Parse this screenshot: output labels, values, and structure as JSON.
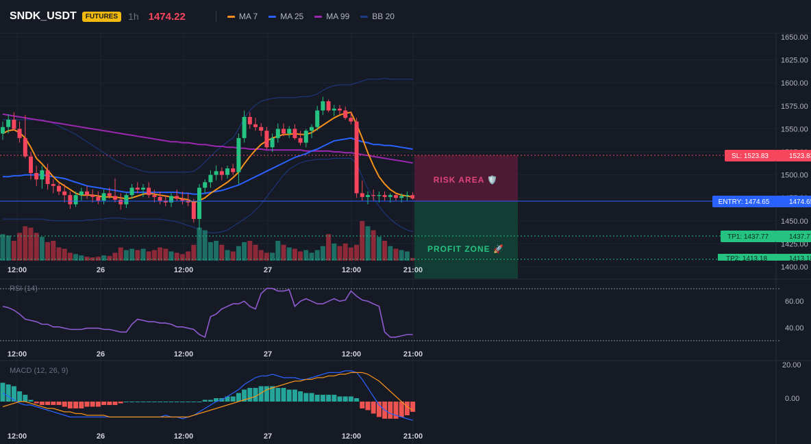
{
  "header": {
    "symbol": "SNDK_USDT",
    "badge": "FUTURES",
    "timeframe": "1h",
    "last_price": "1474.22",
    "legend": [
      {
        "name": "MA 7",
        "color": "#f7931a"
      },
      {
        "name": "MA 25",
        "color": "#2962ff"
      },
      {
        "name": "MA 99",
        "color": "#9c27b0"
      },
      {
        "name": "BB 20",
        "color": "#1e3a8a"
      }
    ]
  },
  "colors": {
    "up": "#26c281",
    "down": "#f6465d",
    "vol_up": "#1d6e64",
    "vol_down": "#8c2a39"
  },
  "price_axis": {
    "ticks": [
      "1650.00",
      "1625.00",
      "1600.00",
      "1575.00",
      "1550.00",
      "1525.00",
      "1500.00",
      "1475.00",
      "1450.00",
      "1425.00",
      "1400.00"
    ]
  },
  "time_axis": [
    "12:00",
    "26",
    "12:00",
    "27",
    "12:00",
    "21:00"
  ],
  "trade": {
    "sl_label": "SL: 1523.83",
    "sl_value": "1523.83",
    "entry_label": "ENTRY: 1474.65",
    "entry_value": "1474.65",
    "tp1_label": "TP1: 1437.77",
    "tp1_value": "1437.77",
    "tp2_label": "TP2: 1413.18",
    "tp2_value": "1413.18",
    "risk_label": "RISK AREA 🛡️",
    "profit_label": "PROFIT ZONE 🚀"
  },
  "rsi": {
    "label": "RSI (14)",
    "ticks": [
      "60.00",
      "40.00"
    ]
  },
  "macd": {
    "label": "MACD (12, 26, 9)",
    "ticks": [
      "20.00",
      "0.00"
    ]
  },
  "chart_data": [
    {
      "type": "candlestick",
      "title": "SNDK_USDT 1h",
      "ylim": [
        1400,
        1655
      ],
      "x_labels": [
        "12:00",
        "26",
        "12:00",
        "27",
        "12:00",
        "21:00"
      ],
      "candles": [
        [
          1545,
          1558,
          1538,
          1552
        ],
        [
          1552,
          1566,
          1545,
          1560
        ],
        [
          1560,
          1568,
          1548,
          1550
        ],
        [
          1550,
          1558,
          1535,
          1540
        ],
        [
          1540,
          1565,
          1518,
          1520
        ],
        [
          1520,
          1525,
          1495,
          1502
        ],
        [
          1502,
          1510,
          1488,
          1495
        ],
        [
          1495,
          1510,
          1485,
          1505
        ],
        [
          1505,
          1512,
          1484,
          1490
        ],
        [
          1490,
          1495,
          1480,
          1488
        ],
        [
          1488,
          1492,
          1478,
          1482
        ],
        [
          1482,
          1490,
          1470,
          1478
        ],
        [
          1478,
          1482,
          1463,
          1468
        ],
        [
          1468,
          1482,
          1465,
          1478
        ],
        [
          1478,
          1486,
          1472,
          1482
        ],
        [
          1482,
          1488,
          1474,
          1478
        ],
        [
          1478,
          1484,
          1470,
          1476
        ],
        [
          1476,
          1482,
          1468,
          1472
        ],
        [
          1472,
          1484,
          1468,
          1480
        ],
        [
          1480,
          1486,
          1474,
          1477
        ],
        [
          1477,
          1496,
          1470,
          1473
        ],
        [
          1473,
          1480,
          1462,
          1468
        ],
        [
          1468,
          1480,
          1464,
          1478
        ],
        [
          1478,
          1490,
          1474,
          1486
        ],
        [
          1486,
          1492,
          1480,
          1484
        ],
        [
          1484,
          1490,
          1476,
          1486
        ],
        [
          1486,
          1492,
          1475,
          1478
        ],
        [
          1478,
          1484,
          1470,
          1476
        ],
        [
          1476,
          1482,
          1468,
          1472
        ],
        [
          1472,
          1478,
          1466,
          1470
        ],
        [
          1470,
          1480,
          1465,
          1477
        ],
        [
          1477,
          1484,
          1471,
          1474
        ],
        [
          1474,
          1482,
          1468,
          1472
        ],
        [
          1472,
          1480,
          1466,
          1470
        ],
        [
          1470,
          1474,
          1448,
          1452
        ],
        [
          1452,
          1490,
          1440,
          1486
        ],
        [
          1486,
          1495,
          1480,
          1492
        ],
        [
          1492,
          1505,
          1486,
          1500
        ],
        [
          1500,
          1510,
          1494,
          1504
        ],
        [
          1504,
          1508,
          1494,
          1500
        ],
        [
          1500,
          1510,
          1496,
          1507
        ],
        [
          1507,
          1512,
          1500,
          1503
        ],
        [
          1503,
          1545,
          1490,
          1540
        ],
        [
          1540,
          1570,
          1535,
          1563
        ],
        [
          1563,
          1568,
          1550,
          1555
        ],
        [
          1555,
          1562,
          1548,
          1552
        ],
        [
          1552,
          1556,
          1542,
          1548
        ],
        [
          1548,
          1552,
          1528,
          1530
        ],
        [
          1530,
          1545,
          1525,
          1540
        ],
        [
          1540,
          1556,
          1535,
          1550
        ],
        [
          1550,
          1556,
          1542,
          1545
        ],
        [
          1545,
          1553,
          1540,
          1550
        ],
        [
          1550,
          1555,
          1538,
          1540
        ],
        [
          1540,
          1548,
          1532,
          1535
        ],
        [
          1535,
          1550,
          1530,
          1548
        ],
        [
          1548,
          1555,
          1540,
          1552
        ],
        [
          1552,
          1575,
          1548,
          1570
        ],
        [
          1570,
          1585,
          1565,
          1580
        ],
        [
          1580,
          1582,
          1568,
          1570
        ],
        [
          1570,
          1576,
          1564,
          1572
        ],
        [
          1572,
          1576,
          1566,
          1570
        ],
        [
          1570,
          1574,
          1560,
          1562
        ],
        [
          1562,
          1568,
          1555,
          1558
        ],
        [
          1558,
          1562,
          1475,
          1480
        ],
        [
          1480,
          1494,
          1472,
          1476
        ],
        [
          1476,
          1482,
          1468,
          1478
        ],
        [
          1478,
          1484,
          1472,
          1477
        ],
        [
          1477,
          1482,
          1470,
          1478
        ],
        [
          1478,
          1482,
          1472,
          1476
        ],
        [
          1476,
          1480,
          1470,
          1478
        ],
        [
          1478,
          1480,
          1472,
          1475
        ],
        [
          1475,
          1480,
          1470,
          1477
        ],
        [
          1477,
          1482,
          1472,
          1478
        ],
        [
          1478,
          1481,
          1473,
          1474.22
        ]
      ],
      "volumes": [
        40,
        38,
        30,
        42,
        52,
        50,
        42,
        36,
        28,
        30,
        20,
        18,
        12,
        10,
        8,
        6,
        5,
        6,
        8,
        7,
        12,
        20,
        16,
        18,
        16,
        18,
        14,
        16,
        20,
        18,
        14,
        12,
        10,
        14,
        24,
        50,
        46,
        28,
        30,
        24,
        16,
        14,
        22,
        28,
        30,
        24,
        16,
        12,
        12,
        30,
        24,
        20,
        18,
        14,
        16,
        12,
        16,
        22,
        40,
        26,
        22,
        26,
        20,
        24,
        60,
        52,
        46,
        36,
        30,
        22,
        18,
        16,
        14,
        4
      ],
      "ma7": [
        1545,
        1548,
        1549,
        1546,
        1540,
        1530,
        1518,
        1512,
        1505,
        1498,
        1492,
        1488,
        1484,
        1480,
        1478,
        1478,
        1478,
        1477,
        1476,
        1476,
        1476,
        1475,
        1474,
        1475,
        1477,
        1479,
        1480,
        1479,
        1478,
        1477,
        1476,
        1475,
        1474,
        1473,
        1470,
        1472,
        1475,
        1480,
        1484,
        1488,
        1492,
        1497,
        1503,
        1512,
        1520,
        1527,
        1533,
        1537,
        1540,
        1542,
        1544,
        1544,
        1545,
        1544,
        1544,
        1546,
        1550,
        1554,
        1558,
        1562,
        1565,
        1567,
        1568,
        1555,
        1540,
        1524,
        1510,
        1498,
        1490,
        1484,
        1480,
        1478,
        1477,
        1476
      ],
      "ma25": [
        1498,
        1498,
        1499,
        1499,
        1500,
        1500,
        1500,
        1500,
        1499,
        1498,
        1497,
        1496,
        1494,
        1492,
        1490,
        1488,
        1487,
        1486,
        1485,
        1484,
        1483,
        1482,
        1481,
        1481,
        1481,
        1481,
        1481,
        1481,
        1481,
        1481,
        1481,
        1481,
        1480,
        1480,
        1479,
        1479,
        1480,
        1481,
        1482,
        1483,
        1485,
        1487,
        1489,
        1492,
        1495,
        1498,
        1501,
        1504,
        1507,
        1510,
        1513,
        1516,
        1519,
        1521,
        1523,
        1526,
        1528,
        1531,
        1534,
        1537,
        1538,
        1539,
        1540,
        1538,
        1536,
        1535,
        1533,
        1533,
        1532,
        1532,
        1531,
        1530,
        1529,
        1528
      ],
      "ma99": [
        1566,
        1565,
        1564,
        1563,
        1562,
        1561,
        1560,
        1559,
        1558,
        1557,
        1556,
        1555,
        1554,
        1553,
        1552,
        1551,
        1550,
        1549,
        1548,
        1547,
        1546,
        1545,
        1544,
        1543,
        1542,
        1541,
        1540,
        1539,
        1538,
        1537,
        1536,
        1536,
        1535,
        1535,
        1534,
        1533,
        1533,
        1532,
        1531,
        1531,
        1530,
        1530,
        1529,
        1529,
        1528,
        1528,
        1528,
        1527,
        1527,
        1527,
        1527,
        1527,
        1527,
        1527,
        1526,
        1526,
        1526,
        1526,
        1526,
        1525,
        1525,
        1524,
        1524,
        1523,
        1522,
        1521,
        1520,
        1519,
        1518,
        1517,
        1516,
        1515,
        1514,
        1513
      ],
      "bb_upper": [
        1560,
        1560,
        1560,
        1560,
        1560,
        1560,
        1560,
        1560,
        1558,
        1556,
        1553,
        1550,
        1547,
        1544,
        1540,
        1536,
        1532,
        1528,
        1524,
        1520,
        1516,
        1513,
        1510,
        1508,
        1506,
        1504,
        1503,
        1503,
        1503,
        1503,
        1503,
        1503,
        1503,
        1503,
        1504,
        1508,
        1514,
        1520,
        1526,
        1531,
        1536,
        1540,
        1550,
        1562,
        1570,
        1576,
        1580,
        1582,
        1583,
        1584,
        1584,
        1584,
        1584,
        1585,
        1585,
        1586,
        1588,
        1592,
        1595,
        1597,
        1598,
        1598,
        1598,
        1600,
        1602,
        1604,
        1604,
        1604,
        1605,
        1604,
        1604,
        1604,
        1604,
        1604
      ],
      "bb_lower": [
        1452,
        1452,
        1452,
        1452,
        1452,
        1452,
        1452,
        1452,
        1451,
        1450,
        1450,
        1450,
        1450,
        1450,
        1450,
        1451,
        1451,
        1452,
        1452,
        1453,
        1453,
        1453,
        1452,
        1452,
        1452,
        1452,
        1452,
        1452,
        1452,
        1451,
        1450,
        1449,
        1447,
        1445,
        1443,
        1440,
        1438,
        1437,
        1437,
        1438,
        1440,
        1444,
        1448,
        1452,
        1456,
        1462,
        1468,
        1476,
        1484,
        1492,
        1500,
        1506,
        1510,
        1513,
        1515,
        1516,
        1517,
        1517,
        1517,
        1518,
        1518,
        1518,
        1518,
        1512,
        1498,
        1485,
        1475,
        1466,
        1458,
        1452,
        1447,
        1443,
        1440,
        1438
      ]
    },
    {
      "type": "line",
      "title": "RSI (14)",
      "ylim": [
        28,
        75
      ],
      "values": [
        58,
        57,
        55,
        52,
        48,
        47,
        46,
        44,
        44,
        42,
        42,
        41,
        40,
        40,
        40,
        41,
        41,
        41,
        40,
        40,
        39,
        38,
        38,
        44,
        48,
        47,
        46,
        46,
        45,
        45,
        44,
        42,
        42,
        41,
        40,
        36,
        34,
        50,
        52,
        56,
        58,
        60,
        60,
        62,
        58,
        56,
        68,
        72,
        72,
        70,
        70,
        71,
        58,
        62,
        64,
        62,
        60,
        60,
        62,
        64,
        62,
        63,
        70,
        66,
        63,
        62,
        60,
        58,
        38,
        34,
        34,
        35,
        36,
        36
      ]
    },
    {
      "type": "bar",
      "title": "MACD (12, 26, 9)",
      "ylim": [
        -14,
        22
      ],
      "histogram": [
        11,
        10,
        9,
        6,
        4,
        1,
        -1,
        -2,
        -2,
        -2,
        -2,
        -3,
        -4,
        -4,
        -4,
        -3,
        -3,
        -3,
        -2,
        -2,
        -2,
        -1,
        0,
        0,
        0,
        0,
        0,
        0,
        0,
        0,
        0,
        0,
        0,
        0,
        0,
        0,
        1,
        1,
        2,
        2,
        3,
        3,
        5,
        7,
        8,
        8,
        9,
        9,
        9,
        8,
        8,
        7,
        7,
        6,
        5,
        5,
        4,
        4,
        4,
        4,
        3,
        3,
        3,
        2,
        -4,
        -5,
        -7,
        -9,
        -10,
        -10,
        -10,
        -9,
        -8,
        -6
      ],
      "macd": [
        5,
        3,
        1,
        -1,
        -2,
        -2,
        -3,
        -4,
        -5,
        -6,
        -7,
        -8,
        -9,
        -9,
        -9,
        -9,
        -9,
        -9,
        -9,
        -9,
        -9,
        -9,
        -9,
        -9,
        -9,
        -9,
        -9,
        -9,
        -9,
        -8,
        -9,
        -9,
        -10,
        -9,
        -8,
        -6,
        -4,
        -2,
        0,
        1,
        3,
        5,
        7,
        10,
        12,
        14,
        15,
        15,
        16,
        15,
        14,
        14,
        14,
        13,
        13,
        14,
        15,
        16,
        17,
        17,
        17,
        18,
        18,
        17,
        13,
        8,
        3,
        -2,
        -5,
        -7,
        -8,
        -9,
        -10,
        -11
      ],
      "signal": [
        -3,
        -2,
        -1,
        0,
        0,
        -1,
        -2,
        -3,
        -4,
        -4,
        -5,
        -6,
        -6,
        -7,
        -7,
        -8,
        -8,
        -8,
        -8,
        -9,
        -9,
        -9,
        -9,
        -9,
        -9,
        -9,
        -9,
        -9,
        -9,
        -9,
        -9,
        -9,
        -9,
        -9,
        -8,
        -7,
        -6,
        -5,
        -4,
        -3,
        -2,
        -1,
        0,
        1,
        2,
        3,
        5,
        7,
        8,
        9,
        10,
        11,
        12,
        12,
        13,
        13,
        14,
        14,
        15,
        15,
        16,
        16,
        17,
        17,
        17,
        16,
        14,
        12,
        9,
        6,
        3,
        0,
        -3,
        -5
      ]
    }
  ]
}
